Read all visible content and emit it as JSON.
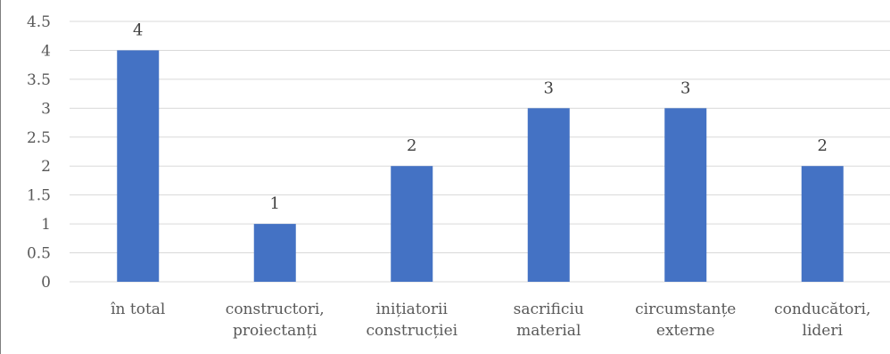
{
  "chart_data": {
    "type": "bar",
    "categories": [
      [
        "în total"
      ],
      [
        "constructori,",
        "proiectanți"
      ],
      [
        "inițiatorii",
        "construcției"
      ],
      [
        "sacrificiu",
        "material"
      ],
      [
        "circumstanțe",
        "externe"
      ],
      [
        "conducători,",
        "lideri"
      ]
    ],
    "values": [
      4,
      1,
      2,
      3,
      3,
      2
    ],
    "data_labels": [
      "4",
      "1",
      "2",
      "3",
      "3",
      "2"
    ],
    "y_ticks": [
      "0",
      "0.5",
      "1",
      "1.5",
      "2",
      "2.5",
      "3",
      "3.5",
      "4",
      "4.5"
    ],
    "ylim": [
      0,
      4.5
    ],
    "grid": true,
    "bar_color": "#4472C4"
  }
}
